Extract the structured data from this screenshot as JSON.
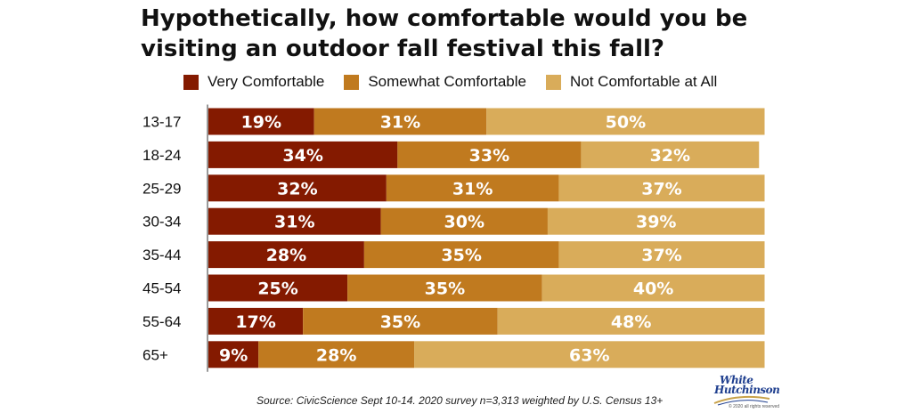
{
  "title": "Hypothetically, how comfortable would you be visiting an outdoor fall festival this fall?",
  "source": "Source: CivicScience Sept 10-14. 2020 survey n=3,313 weighted by U.S. Census 13+",
  "logo": {
    "line1": "White",
    "line2": "Hutchinson",
    "small": "© 2020 all rights reserved"
  },
  "colors": {
    "very": "#841a00",
    "somewhat": "#c07a1f",
    "not": "#d9ac5a"
  },
  "chart_data": {
    "type": "bar",
    "orientation": "horizontal",
    "stacked": true,
    "categories": [
      "13-17",
      "18-24",
      "25-29",
      "30-34",
      "35-44",
      "45-54",
      "55-64",
      "65+"
    ],
    "series": [
      {
        "name": "Very Comfortable",
        "values": [
          19,
          34,
          32,
          31,
          28,
          25,
          17,
          9
        ]
      },
      {
        "name": "Somewhat Comfortable",
        "values": [
          31,
          33,
          31,
          30,
          35,
          35,
          35,
          28
        ]
      },
      {
        "name": "Not Comfortable at All",
        "values": [
          50,
          32,
          37,
          39,
          37,
          40,
          48,
          63
        ]
      }
    ],
    "value_suffix": "%",
    "legend_position": "top",
    "grid": false
  }
}
